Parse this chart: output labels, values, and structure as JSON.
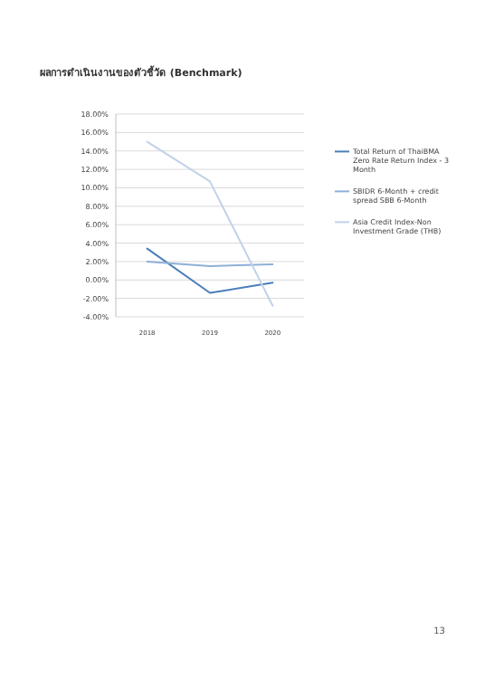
{
  "chart_data": {
    "type": "line",
    "title": "ผลการดำเนินงานของตัวชี้วัด (Benchmark)",
    "categories": [
      "2018",
      "2019",
      "2020"
    ],
    "series": [
      {
        "name": "Total Return of ThaiBMA Zero Rate Return Index - 3 Month",
        "color": "#4a7ebb",
        "values": [
          3.4,
          -1.4,
          -0.3
        ]
      },
      {
        "name": "SBIDR 6-Month + credit spread SBB 6-Month",
        "color": "#8eb0d8",
        "values": [
          2.0,
          1.5,
          1.7
        ]
      },
      {
        "name": "Asia Credit Index-Non Investment Grade (THB)",
        "color": "#c0d2e8",
        "values": [
          15.0,
          10.7,
          -2.8
        ]
      }
    ],
    "ylim": [
      -4,
      18
    ],
    "yticks": [
      {
        "value": -4,
        "label": "-4.00%"
      },
      {
        "value": -2,
        "label": "-2.00%"
      },
      {
        "value": 0,
        "label": "0.00%"
      },
      {
        "value": 2,
        "label": "2.00%"
      },
      {
        "value": 4,
        "label": "4.00%"
      },
      {
        "value": 6,
        "label": "6.00%"
      },
      {
        "value": 8,
        "label": "8.00%"
      },
      {
        "value": 10,
        "label": "10.00%"
      },
      {
        "value": 12,
        "label": "12.00%"
      },
      {
        "value": 14,
        "label": "14.00%"
      },
      {
        "value": 16,
        "label": "16.00%"
      },
      {
        "value": 18,
        "label": "18.00%"
      }
    ],
    "grid": "y",
    "legend": "right",
    "marker": "none",
    "line_style": "solid",
    "annotations": [
      "13"
    ]
  }
}
